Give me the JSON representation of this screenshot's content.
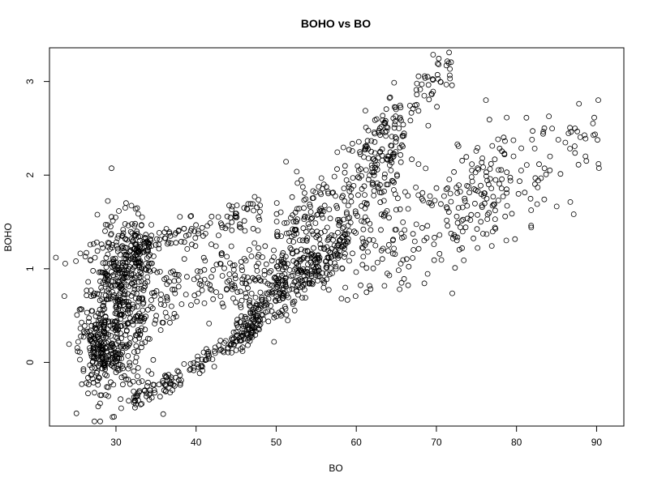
{
  "chart_data": {
    "type": "scatter",
    "title": "BOHO vs BO",
    "xlabel": "BO",
    "ylabel": "BOHO",
    "xlim": [
      21.7,
      93.4
    ],
    "ylim": [
      -0.68,
      3.36
    ],
    "xticks": [
      30,
      40,
      50,
      60,
      70,
      80,
      90
    ],
    "yticks": [
      0,
      1,
      2,
      3
    ],
    "xtick_labels": [
      "30",
      "40",
      "50",
      "60",
      "70",
      "80",
      "90"
    ],
    "ytick_labels": [
      "0",
      "1",
      "2",
      "3"
    ],
    "grid": false,
    "legend": "none",
    "marker": "open-circle",
    "marker_color": "#000000",
    "clusters": [
      {
        "x_mean": 30.5,
        "x_sd": 2.4,
        "y_mean": 0.6,
        "y_sd": 0.45,
        "n": 520
      },
      {
        "x_mean": 28.0,
        "x_sd": 1.2,
        "y_mean": 0.1,
        "y_sd": 0.2,
        "n": 140
      },
      {
        "x_mean": 32.5,
        "x_sd": 1.2,
        "y_mean": 1.2,
        "y_sd": 0.15,
        "n": 110
      }
    ],
    "bands": [
      {
        "x_range": [
          31.5,
          47.5
        ],
        "y_start": -0.45,
        "y_end": 0.35,
        "jitter_y": 0.06,
        "n": 150
      },
      {
        "x_range": [
          45.0,
          59.0
        ],
        "y_start": 0.35,
        "y_end": 1.3,
        "jitter_y": 0.12,
        "n": 260
      },
      {
        "x_range": [
          35.0,
          56.0
        ],
        "y_start": 0.72,
        "y_end": 1.05,
        "jitter_y": 0.18,
        "n": 220
      },
      {
        "x_range": [
          36.0,
          48.0
        ],
        "y_start": 1.35,
        "y_end": 1.65,
        "jitter_y": 0.08,
        "n": 80
      },
      {
        "x_range": [
          50.0,
          66.0
        ],
        "y_start": 1.2,
        "y_end": 2.4,
        "jitter_y": 0.25,
        "n": 260
      },
      {
        "x_range": [
          61.0,
          72.0
        ],
        "y_start": 2.3,
        "y_end": 3.15,
        "jitter_y": 0.14,
        "n": 80
      },
      {
        "x_range": [
          58.0,
          79.0
        ],
        "y_start": 1.2,
        "y_end": 1.9,
        "jitter_y": 0.35,
        "n": 220
      },
      {
        "x_range": [
          72.0,
          90.5
        ],
        "y_start": 1.6,
        "y_end": 2.45,
        "jitter_y": 0.28,
        "n": 110
      }
    ]
  }
}
